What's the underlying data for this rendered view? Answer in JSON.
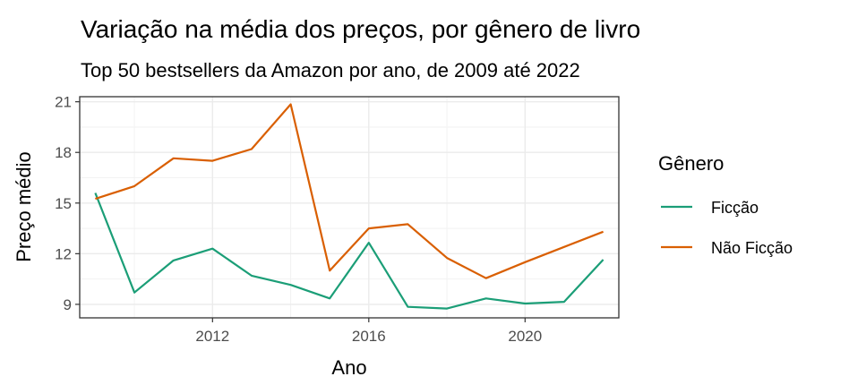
{
  "chart_data": {
    "type": "line",
    "title": "Variação na média dos preços, por gênero de livro",
    "subtitle": "Top 50 bestsellers da Amazon por ano, de 2009 até 2022",
    "xlabel": "Ano",
    "ylabel": "Preço médio",
    "x": [
      2009,
      2010,
      2011,
      2012,
      2013,
      2014,
      2015,
      2016,
      2017,
      2018,
      2019,
      2020,
      2021,
      2022
    ],
    "xlim": [
      2008.6,
      2022.4
    ],
    "ylim": [
      8.2,
      21.3
    ],
    "xticks": [
      2012,
      2016,
      2020
    ],
    "yticks": [
      9,
      12,
      15,
      18,
      21
    ],
    "grid": true,
    "legend": {
      "title": "Gênero",
      "position": "right"
    },
    "series": [
      {
        "name": "Ficção",
        "color": "#1b9e77",
        "values": [
          15.6,
          9.7,
          11.6,
          12.3,
          10.7,
          10.15,
          9.35,
          12.65,
          8.85,
          8.75,
          9.35,
          9.05,
          9.15,
          11.65
        ]
      },
      {
        "name": "Não Ficção",
        "color": "#d95f02",
        "values": [
          15.25,
          16.0,
          17.65,
          17.5,
          18.2,
          20.85,
          11.0,
          13.5,
          13.75,
          11.75,
          10.55,
          11.5,
          12.4,
          13.3
        ]
      }
    ]
  }
}
